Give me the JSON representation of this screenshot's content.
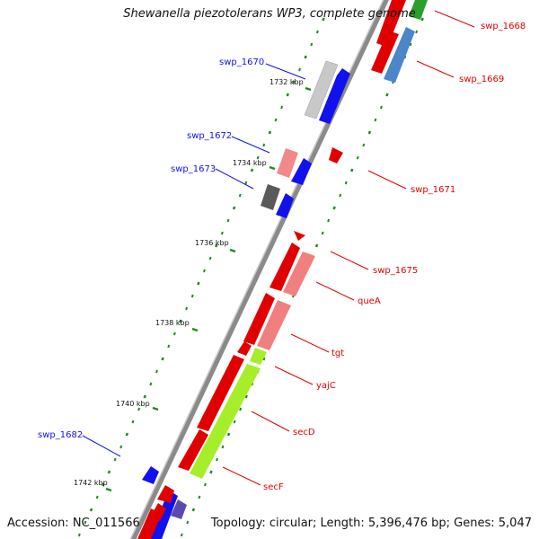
{
  "title": "Shewanella piezotolerans WP3, complete genome",
  "accession": "Accession: NC_011566",
  "topology": "Topology: circular; Length: 5,396,476 bp; Genes: 5,047",
  "ticks": [
    "1732 kbp",
    "1734 kbp",
    "1736 kbp",
    "1738 kbp",
    "1740 kbp",
    "1742 kbp"
  ],
  "genes": [
    {
      "label": "swp_1668",
      "strand": "forward",
      "color": "#e60000"
    },
    {
      "label": "swp_1669",
      "strand": "forward",
      "color": "#e60000"
    },
    {
      "label": "swp_1670",
      "strand": "reverse",
      "color": "#1a1aff"
    },
    {
      "label": "swp_1671",
      "strand": "forward",
      "color": "#e60000"
    },
    {
      "label": "swp_1672",
      "strand": "reverse",
      "color": "#1a1aff"
    },
    {
      "label": "swp_1673",
      "strand": "reverse",
      "color": "#1a1aff"
    },
    {
      "label": "swp_1675",
      "strand": "forward",
      "color": "#e60000"
    },
    {
      "label": "queA",
      "strand": "forward",
      "color": "#e60000"
    },
    {
      "label": "tgt",
      "strand": "forward",
      "color": "#e60000"
    },
    {
      "label": "yajC",
      "strand": "forward",
      "color": "#e60000"
    },
    {
      "label": "secD",
      "strand": "forward",
      "color": "#e60000"
    },
    {
      "label": "swp_1682",
      "strand": "reverse",
      "color": "#1a1aff"
    },
    {
      "label": "secF",
      "strand": "forward",
      "color": "#e60000"
    }
  ],
  "colors": {
    "forward_cds": "#ff0000",
    "forward_cds_light": "#f08080",
    "reverse_cds": "#0000ee",
    "reverse_grey_light": "#c8c8c8",
    "reverse_grey_dark": "#555555",
    "reverse_purple": "#5a4ab0",
    "func_green": "#a6ee2a",
    "func_blue": "#4a86c8",
    "backbone": "#888888",
    "gc_dots": "#1f8a1f"
  }
}
